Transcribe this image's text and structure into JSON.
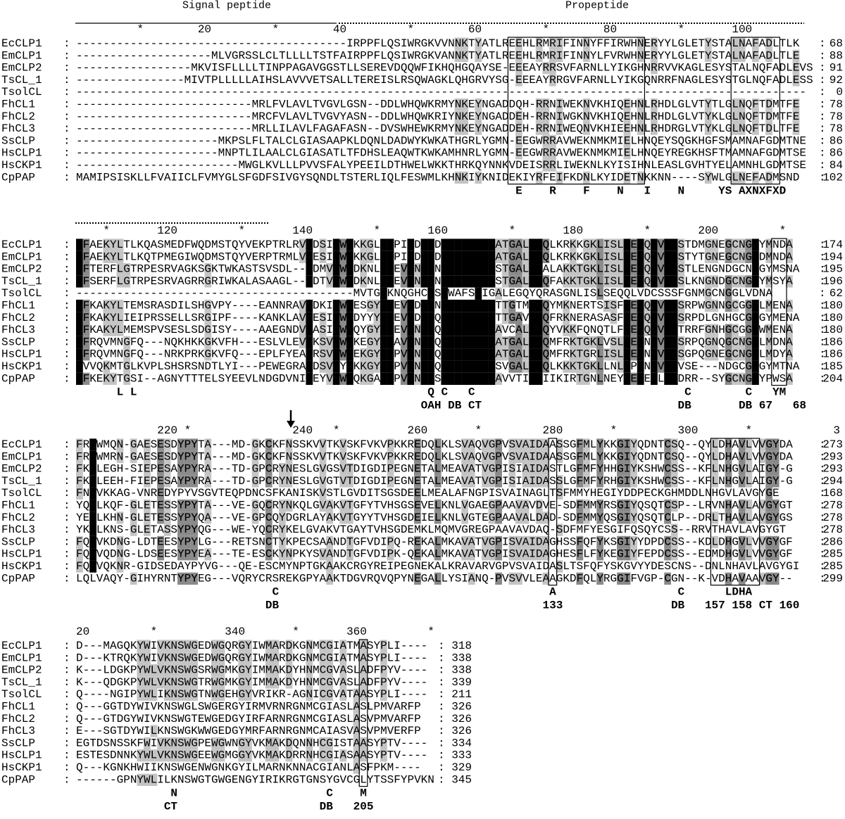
{
  "header": {
    "signal_peptide": "Signal peptide",
    "propeptide": "Propeptide"
  },
  "separator": ":",
  "blocks": [
    {
      "ruler": "         *        20         *        40         *        60         *        80         *       100",
      "rows": [
        {
          "name": "EcCLP1",
          "sequence": "----------------------------------------IRPPFLQSIWRGKVVNNKTYATLREEHLRMRIFINNYFFIRWHNERYYLGLETYSTALNAFADLTLK",
          "end": 68
        },
        {
          "name": "EmCLP1",
          "sequence": "--------------------MLVGRSSLCLTLLLLTSTFAIRPPFLQSIWRGKVANNKTYATLREEHLRMRIFINNYLFVRWHNERYYLGLETYSTALNAFADLTLE",
          "end": 88
        },
        {
          "name": "EmCLP2",
          "sequence": "-----------------MKVISFLLLLTINPPAGAVGGSTLLSEREVDQQWFIKHQHGQAYSE-EEEAYRRSVFARNLLYIKGHNRRVVKAGLESYSTALNQFADLEVS",
          "end": 91
        },
        {
          "name": "TsCL_1",
          "sequence": "----------------MIVTPLLLLLAIHSLAVVVETSALLTEREISLRSQWAGKLQHGRVYSG-EEEAYRRGVFARNLLYIKGQNRRFNAGLESYSTGLNQFADLESS",
          "end": 92
        },
        {
          "name": "TsolCL",
          "sequence": "------------------------------------------------------------------------------------------------------------",
          "end": 0
        },
        {
          "name": "FhCL1",
          "sequence": "--------------------------MRLFVLAVLTVGVLGSN--DDLWHQWKRMYNKEYNGADDQH-RRNIWEKNVKHIQEHNLRHDLGLVTYTLGLNQFTDMTFE",
          "end": 78
        },
        {
          "name": "FhCL2",
          "sequence": "--------------------------MRCFVLAVLTVGVYASN--DDLWHQWKRIYNKEYNGADDEH-RRNIWGKNVKHIQEHNLRHDLGLVTYKLGLNQFTDMTFE",
          "end": 78
        },
        {
          "name": "FhCL3",
          "sequence": "--------------------------MRLLILAVLFAGAFASN--DVSWHEWKRMYNKEYNGADDEH-RRNIWEQNVKHIEEHNLRHDRGLVTYKLGLNQFTDLTFE",
          "end": 78
        },
        {
          "name": "SsCLP",
          "sequence": "---------------------MKPSLFLTALCLGIASAAPKLDQNLDADWYKWKATHGRLYGMN-EEGWRRAVWEKNMKMIELHNQEYSQGKHGFSMAMNAFGDMTNE",
          "end": 86
        },
        {
          "name": "HsCLP1",
          "sequence": "---------------------MNPTLILAALCLGIASATLTFDHSLEAQWTKWKAMHNRLYGMN-EEGWRRAVWEKNMKMIELHNQEYREGKHSFTMAMNAFGDMTSE",
          "end": 86
        },
        {
          "name": "HsCKP1",
          "sequence": "------------------------MWGLKVLLLPVVSFALYPEEILDTHWELWKKTHRKQYNNKVDEISRRLIWEKNLKYISIHNLEASLGVHTYELAMNHLGDMTSE",
          "end": 84
        },
        {
          "name": "CpPAP",
          "sequence": "MAMIPSISKLLFVAIICLFVMYGLSFGDFSIVGYSQNDLTSTERLIQLFESWMLKHNKIYKNIDEKIYRFEIFKDNLKYIDETNKKNN----SYWLGLNEFADMSND",
          "end": 102
        }
      ],
      "annotations": [
        "                                                                 E    R    F    N   I    N     YS AXNXFXD"
      ]
    },
    {
      "ruler": "    *       120         *       140         *       160         *       180         *       200         *",
      "rows": [
        {
          "name": "EcCLP1",
          "sequence": "EFAEKYLTLKQASMEDFWQDMSTQYVEKPTRLRVPDSIDWRKKGLVTPIKDQGDCGSCWAFSATGALEGQLKRKKGKLISLSEQQLVDCSTDMGNEGCNGGYMNDA",
          "end": 174
        },
        {
          "name": "EmCLP1",
          "sequence": "EFAEKYLTLKQTPMEGIWQDMSTQYVERPTRMLVPESIDWRKKGLVTPIKDQGDCGSCWAFSATGALEGQLKRKKGKLISLSEQQLVDCSTYTGNEGCNGGDMNDA",
          "end": 194
        },
        {
          "name": "EmCLP2",
          "sequence": "EFTERFLGTRPESRVAGKSGKTWKASTSVSDL--PDMVDWRDKNLVTEVKNQGNCGSCWAFSSTGALEGALAKKTGKLISLSEQQLVDCSTLENGNDGCNGGYMSNA",
          "end": 195
        },
        {
          "name": "TsCL_1",
          "sequence": "EFSERFLGTRPESRVAGRRGRIWKALASAAGL--PDTVDWRDKNLVTEVKNQGNCGSCWAFSSTGALEGQFAKKTGKLISLSEQQLVDCSLKNGNDGCNGGYMSYA",
          "end": 196
        },
        {
          "name": "TsolCL",
          "sequence": "-----------------------------------------MVTGVKNQGHCGSCWAFSAIGALEGQYQRASGNLISLSEQQLVDCSSSFGNMGCNGGLVDNA",
          "end": 62
        },
        {
          "name": "FhCL1",
          "sequence": "EFKAKYLTEMSRASDILSHGVPY----EANNRAVPDKIDWRESGYVTEVKDQGNCGSCWAFSTTGTMEGQYMKNERTSISFSEQQLVDCSRPWGNNGCGGGLMENA",
          "end": 180
        },
        {
          "name": "FhCL2",
          "sequence": "EFKAKYLIEIPRSSELLSRGIPF----KANKLAVPESIDWRDYYYVTEVKDQGQCGSCWAFSTTGAVEGQFRKNERASASFSEQQLVDCSRPDLGNHGCGGGYMENA",
          "end": 180
        },
        {
          "name": "FhCL3",
          "sequence": "EFKAKYLMEMSPVSESLSDGISY----AAEGNDVPASIDWRQYGYVTEVKNQGQCGSCWAFSAVCALEGQYVKKFQNQTLFSEQQLVDCTRRFGNHGCGGGWMENA",
          "end": 180
        },
        {
          "name": "SsCLP",
          "sequence": "EFRQVMNGFQ---NQKHKKGKVFH---ESLVLEVPKSVDWRKEGYVTAVKNQGQCGSCWAFSATGALEGQMFRKTGKLVSLSEQNLVDCSRPQGNQGCNGGLMDNA",
          "end": 186
        },
        {
          "name": "HsCLP1",
          "sequence": "EFRQVMNGFQ---NRKPRKGKVFQ---EPLFYEAPRSVDWREKGYVTPVKNQGQCGSCWAFSATGALEGQMFRKTGRLISLSEQNLVDCSGPQGNEGCNGGLMDYA",
          "end": 186
        },
        {
          "name": "HsCKP1",
          "sequence": "EVVQKMTGLKVPLSHSRSNDTLYI---PEWEGRAPDSVDYRKKGYVTPVKNQGQCGSCWAFSSVGALEGQLKKKTGKLLNLSPQNLVDCVSE---NDGCGGGYMTNA",
          "end": 185
        },
        {
          "name": "CpPAP",
          "sequence": "EFKEKYTGSI--AGNYTTTELSYEEVLNDGDVNIPEYVDWRQKGAVTPVKNQGSCGSCWAFSAVVTIEGIIKIRTGNLNEYSEQELLDCDRR--SYGCNGGYPWSA",
          "end": 204
        }
      ],
      "annotations": [
        "      L L                                           Q C   C                               C        C   YM",
        "                                                   OAH DB CT                             DB       DB 67   68"
      ]
    },
    {
      "ruler": "            220 *               240   *          260       *         280       *         300       *            3",
      "rows": [
        {
          "name": "EcCLP1",
          "sequence": "FRYWMQN-GAESESDYPYTA---MD-GKCKFNSSKVVTKVSKFVKVPKKREDQLKLSVAQVGPVSVAIDAASSGFMLYKKGIYQDNTCSQ--QYLDHAVLVVGYDA",
          "end": 273
        },
        {
          "name": "EmCLP1",
          "sequence": "FRYWMRN-GAESESDYPYTA---MD-GKCKFNSSKVVTKVSKFVKVPKKREDQLKLSVAQVGPVSVAIDAASSGFMLYKKGIYQDNTCSQ--QYLDHAVLVVGYDA",
          "end": 293
        },
        {
          "name": "EmCLP2",
          "sequence": "FKYLEGH-SIEPESAYPYRA---TD-GPCRYNESLGVGSVTDIGDIPEGNETALMEAVATVGPISIAIDASTLGFMFYHHGIYKSHWCSS--KFLNHGVLAIGY-G",
          "end": 293
        },
        {
          "name": "TsCL_1",
          "sequence": "FKYLEEH-FIEPESAYPYRA---TD-GPCRYNESLGVGTVTDIGDIPEGNETALMEAVATVGPISIAIDASSLGFMFYRHGIYKSHWCSS--KFLNHGVLAIGY-G",
          "end": 294
        },
        {
          "name": "TsolCL",
          "sequence": "FNYVKKAG-VNREDYPYVSGVTEQPDNCSFKANISKVSTLGVDITSGSDEELMEALAFNGPISVAINAGLTSFMMYHEGIYDDPECKGHMDDLNHGVLAVGYGE",
          "end": 168
        },
        {
          "name": "FhCL1",
          "sequence": "YQYLKQF-GLETESSYPYTA---VE-GQCRYNKQLGVAKVTGFYTVHSGSEVELKNLVGAEGPAAVAVDVE-SDFMMYRSGIYQSQTCSP--LRVNHAVLAVGYGT",
          "end": 278
        },
        {
          "name": "FhCL2",
          "sequence": "YEYLKHN-GLETESSYPYQA---VE-GPCQYDGRLAYAKVTGYYTVHSGDEIELKNLVGTEGPAAVALDAD-SDFMMYQSGIYQSQTCLP--DRLTHAVLAVGYGS",
          "end": 278
        },
        {
          "name": "FhCL3",
          "sequence": "YKYLKNS-GLETASSYPYQG---WE-YQCRYKELGVAKVTGAYTVHSGDEMKLMQMVGREGPAAVAVDAQ-SDFMFYESGIFQSQYCSS--RRVTHAVLAVGYGT",
          "end": 278
        },
        {
          "name": "SsCLP",
          "sequence": "FQYVKDNG-LDTEESYPYLG---RETSNCTYKPECSAANDTGFVDIPQ-REKALMKAVATVGPISVAIDAGHSSFQFYKSGIYYDPDCSS--KDLDHGVLVVGYGF",
          "end": 286
        },
        {
          "name": "HsCLP1",
          "sequence": "FQYVQDNG-LDSEESYPYEA---TE-ESCKYNPKYSVANDTGFVDIPK-QEKALMKAVATVGPISVAIDAGHESFLFYKEGIYFEPDCSS--EDMDHGVLVVGYGF",
          "end": 285
        },
        {
          "name": "HsCKP1",
          "sequence": "FQYVQKNR-GIDSEDAYPYVG---QE-ESCMYNPTGKAAKCRGYREIPEGNEKALKRAVARVGPVSVAIDASLTSFQFYSKGVYYDESCNS--DNLNHAVLAVGYGI",
          "end": 285
        },
        {
          "name": "CpPAP",
          "sequence": "LQLVAQY-GIHYRNTYPYEG---VQRYCRSREKGPYAAKTDGVRQVQPYNEGALLYSIANQ-PVSVVLEAAGKDFQLYRGGIFVGP-CGN--K-VDHAVAAVGY--",
          "end": 299
        }
      ],
      "annotations": [
        "                             C                                        A                  C      LDHA",
        "                            DB                                       133                DB   157 158 CT 160"
      ]
    },
    {
      "ruler": "20         *          340       *       360         *",
      "rows": [
        {
          "name": "EcCLP1",
          "sequence": "D---MAGQKYWIVKNSWGEDWGQRGYIWMARDKGNMCGIATMASYPLI----",
          "end": 318
        },
        {
          "name": "EmCLP1",
          "sequence": "D---KTRQKYWIVKNSWGEDWGQRGYIWMARDKGNMCGIATMASYPLI----",
          "end": 338
        },
        {
          "name": "EmCLP2",
          "sequence": "K---LDGKPYWLVKNSWGSRWGMKGYIMMAKDYHNMCGVASLADFPYV----",
          "end": 338
        },
        {
          "name": "TsCL_1",
          "sequence": "K---QDGKPYWLVKNSWGTRWGMKGYIMMAKDYHNMCGVASLADFPYV----",
          "end": 339
        },
        {
          "name": "TsolCL",
          "sequence": "Q----NGIPYWLIKNSWGTNWGEHGYVRIKR-AGNICGVATAASYPLI----",
          "end": 211
        },
        {
          "name": "FhCL1",
          "sequence": "Q---GGTDYWIVKNSWGLSWGERGYIRMVRNRGNMCGIASLASLPMVARFP",
          "end": 326
        },
        {
          "name": "FhCL2",
          "sequence": "Q---GTDGYWIVKNSWGTEWGEDGYIRFARNRGNMCGIASLASVPMVARFP",
          "end": 326
        },
        {
          "name": "FhCL3",
          "sequence": "E---SGTDYWILKNSWGKWWGEDGYMRFARNRGNMCAIASVASVPMVERFP",
          "end": 326
        },
        {
          "name": "SsCLP",
          "sequence": "EGTDSNSSKFWIVKNSWGPEWGWNGYVKMAKDQNNHCGISTAASYPTV----",
          "end": 334
        },
        {
          "name": "HsCLP1",
          "sequence": "ESTESDNNKYWLVKNSWGEEWGMGGYVKMAKDRRNHCGIASAASYPTV----",
          "end": 333
        },
        {
          "name": "HsCKP1",
          "sequence": "Q---KGNKHWIIKNSWGENWGNKGYILMARNKNNACGIANLASFPKM----",
          "end": 329
        },
        {
          "name": "CpPAP",
          "sequence": "------GPNYWLILKNSWGTGWGENGYIRIKRGTGNSYGVCGLYTSSFYPVKN",
          "end": 345
        }
      ],
      "annotations": [
        "              N                      C    M",
        "             CT                     DB   205"
      ]
    }
  ]
}
